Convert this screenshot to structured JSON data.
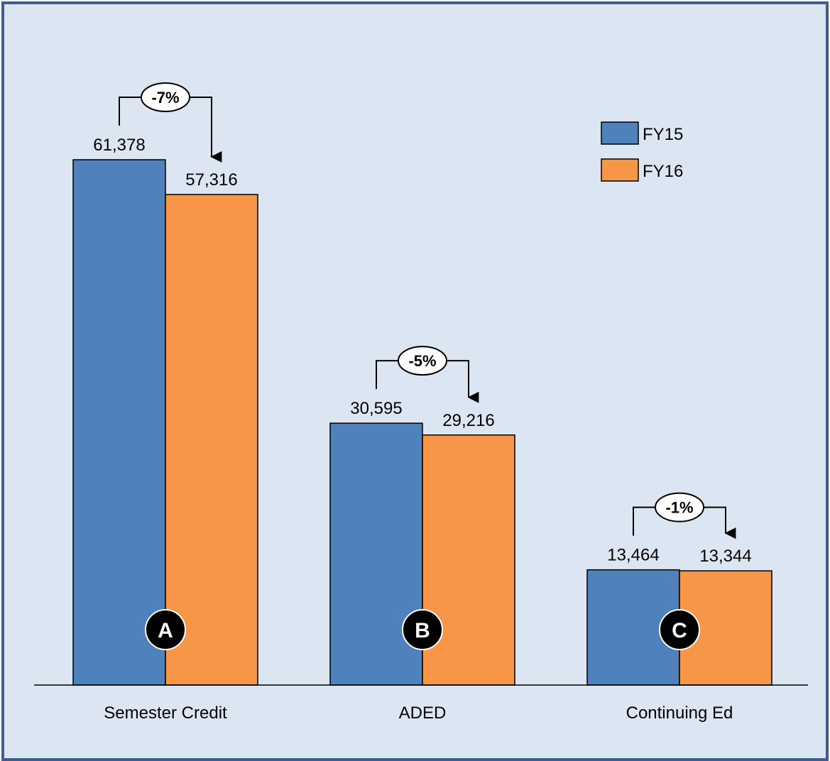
{
  "chart_data": {
    "type": "bar",
    "categories": [
      "Semester Credit",
      "ADED",
      "Continuing Ed"
    ],
    "series": [
      {
        "name": "FY15",
        "values": [
          61378,
          30595,
          13464
        ],
        "color": "#4f81bd"
      },
      {
        "name": "FY16",
        "values": [
          57316,
          29216,
          13344
        ],
        "color": "#f79646"
      }
    ],
    "data_labels": [
      [
        "61,378",
        "57,316"
      ],
      [
        "30,595",
        "29,216"
      ],
      [
        "13,464",
        "13,344"
      ]
    ],
    "change_labels": [
      "-7%",
      "-5%",
      "-1%"
    ],
    "badges": [
      "A",
      "B",
      "C"
    ],
    "ylim": [
      0,
      72000
    ],
    "legend_position": "top-right",
    "grid": false,
    "background_color": "#dce6f2",
    "border_color": "#3d5f8f"
  }
}
